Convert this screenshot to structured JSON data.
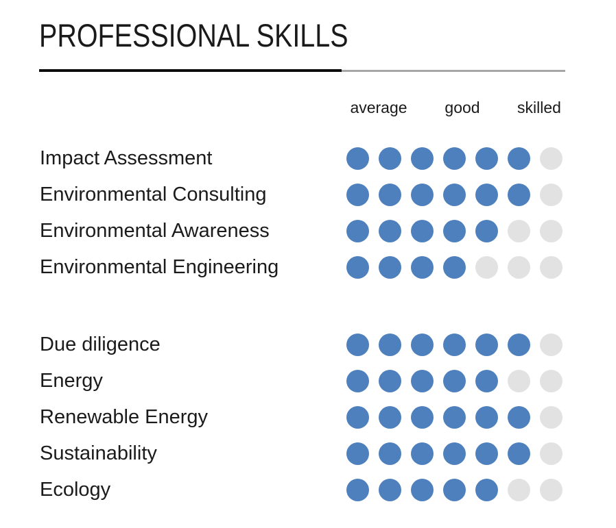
{
  "header": {
    "title": "PROFESSIONAL SKILLS"
  },
  "scale": {
    "labels": [
      "average",
      "good",
      "skilled"
    ]
  },
  "colors": {
    "dot_filled": "#4d80bd",
    "dot_empty": "#e2e2e2",
    "divider_dark": "#0d0d0d",
    "divider_light": "#a6a6a6",
    "text": "#1a1a1a"
  },
  "chart_data": {
    "type": "table",
    "title": "PROFESSIONAL SKILLS",
    "scale_max": 7,
    "scale_labels": [
      "average",
      "good",
      "skilled"
    ],
    "groups": [
      {
        "skills": [
          {
            "name": "Impact Assessment",
            "rating": 6
          },
          {
            "name": "Environmental Consulting",
            "rating": 6
          },
          {
            "name": "Environmental Awareness",
            "rating": 5
          },
          {
            "name": "Environmental Engineering",
            "rating": 4
          }
        ]
      },
      {
        "skills": [
          {
            "name": "Due diligence",
            "rating": 6
          },
          {
            "name": "Energy",
            "rating": 5
          },
          {
            "name": "Renewable Energy",
            "rating": 6
          },
          {
            "name": "Sustainability",
            "rating": 6
          },
          {
            "name": "Ecology",
            "rating": 5
          }
        ]
      }
    ]
  }
}
